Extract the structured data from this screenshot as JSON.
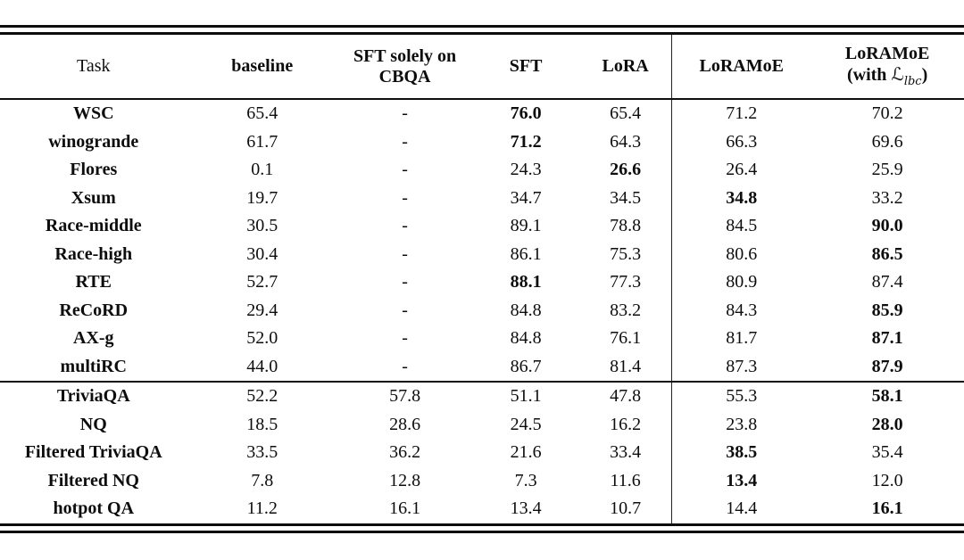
{
  "table": {
    "columns": [
      {
        "label": "Task",
        "bold": false
      },
      {
        "label": "baseline",
        "bold": true
      },
      {
        "line1": "SFT solely on",
        "line2": "CBQA",
        "bold": true
      },
      {
        "label": "SFT",
        "bold": true
      },
      {
        "label": "LoRA",
        "bold": true
      },
      {
        "label": "LoRAMoE",
        "bold": true
      },
      {
        "line1": "LoRAMoE",
        "line2_pre": "(with ",
        "math_symbol": "ℒ",
        "math_sub": "lbc",
        "line2_post": ")",
        "bold": true
      }
    ],
    "sections": [
      {
        "name": "downstream-tasks",
        "rows": [
          {
            "task": "WSC",
            "cells": [
              {
                "v": "65.4",
                "b": false
              },
              {
                "v": "-",
                "b": false
              },
              {
                "v": "76.0",
                "b": true
              },
              {
                "v": "65.4",
                "b": false
              },
              {
                "v": "71.2",
                "b": false
              },
              {
                "v": "70.2",
                "b": false
              }
            ]
          },
          {
            "task": "winogrande",
            "cells": [
              {
                "v": "61.7",
                "b": false
              },
              {
                "v": "-",
                "b": false
              },
              {
                "v": "71.2",
                "b": true
              },
              {
                "v": "64.3",
                "b": false
              },
              {
                "v": "66.3",
                "b": false
              },
              {
                "v": "69.6",
                "b": false
              }
            ]
          },
          {
            "task": "Flores",
            "cells": [
              {
                "v": "0.1",
                "b": false
              },
              {
                "v": "-",
                "b": false
              },
              {
                "v": "24.3",
                "b": false
              },
              {
                "v": "26.6",
                "b": true
              },
              {
                "v": "26.4",
                "b": false
              },
              {
                "v": "25.9",
                "b": false
              }
            ]
          },
          {
            "task": "Xsum",
            "cells": [
              {
                "v": "19.7",
                "b": false
              },
              {
                "v": "-",
                "b": false
              },
              {
                "v": "34.7",
                "b": false
              },
              {
                "v": "34.5",
                "b": false
              },
              {
                "v": "34.8",
                "b": true
              },
              {
                "v": "33.2",
                "b": false
              }
            ]
          },
          {
            "task": "Race-middle",
            "cells": [
              {
                "v": "30.5",
                "b": false
              },
              {
                "v": "-",
                "b": false
              },
              {
                "v": "89.1",
                "b": false
              },
              {
                "v": "78.8",
                "b": false
              },
              {
                "v": "84.5",
                "b": false
              },
              {
                "v": "90.0",
                "b": true
              }
            ]
          },
          {
            "task": "Race-high",
            "cells": [
              {
                "v": "30.4",
                "b": false
              },
              {
                "v": "-",
                "b": false
              },
              {
                "v": "86.1",
                "b": false
              },
              {
                "v": "75.3",
                "b": false
              },
              {
                "v": "80.6",
                "b": false
              },
              {
                "v": "86.5",
                "b": true
              }
            ]
          },
          {
            "task": "RTE",
            "cells": [
              {
                "v": "52.7",
                "b": false
              },
              {
                "v": "-",
                "b": false
              },
              {
                "v": "88.1",
                "b": true
              },
              {
                "v": "77.3",
                "b": false
              },
              {
                "v": "80.9",
                "b": false
              },
              {
                "v": "87.4",
                "b": false
              }
            ]
          },
          {
            "task": "ReCoRD",
            "cells": [
              {
                "v": "29.4",
                "b": false
              },
              {
                "v": "-",
                "b": false
              },
              {
                "v": "84.8",
                "b": false
              },
              {
                "v": "83.2",
                "b": false
              },
              {
                "v": "84.3",
                "b": false
              },
              {
                "v": "85.9",
                "b": true
              }
            ]
          },
          {
            "task": "AX-g",
            "cells": [
              {
                "v": "52.0",
                "b": false
              },
              {
                "v": "-",
                "b": false
              },
              {
                "v": "84.8",
                "b": false
              },
              {
                "v": "76.1",
                "b": false
              },
              {
                "v": "81.7",
                "b": false
              },
              {
                "v": "87.1",
                "b": true
              }
            ]
          },
          {
            "task": "multiRC",
            "cells": [
              {
                "v": "44.0",
                "b": false
              },
              {
                "v": "-",
                "b": false
              },
              {
                "v": "86.7",
                "b": false
              },
              {
                "v": "81.4",
                "b": false
              },
              {
                "v": "87.3",
                "b": false
              },
              {
                "v": "87.9",
                "b": true
              }
            ]
          }
        ]
      },
      {
        "name": "cbqa-tasks",
        "rows": [
          {
            "task": "TriviaQA",
            "cells": [
              {
                "v": "52.2",
                "b": false
              },
              {
                "v": "57.8",
                "b": false
              },
              {
                "v": "51.1",
                "b": false
              },
              {
                "v": "47.8",
                "b": false
              },
              {
                "v": "55.3",
                "b": false
              },
              {
                "v": "58.1",
                "b": true
              }
            ]
          },
          {
            "task": "NQ",
            "cells": [
              {
                "v": "18.5",
                "b": false
              },
              {
                "v": "28.6",
                "b": false
              },
              {
                "v": "24.5",
                "b": false
              },
              {
                "v": "16.2",
                "b": false
              },
              {
                "v": "23.8",
                "b": false
              },
              {
                "v": "28.0",
                "b": true
              }
            ]
          },
          {
            "task": "Filtered TriviaQA",
            "cells": [
              {
                "v": "33.5",
                "b": false
              },
              {
                "v": "36.2",
                "b": false
              },
              {
                "v": "21.6",
                "b": false
              },
              {
                "v": "33.4",
                "b": false
              },
              {
                "v": "38.5",
                "b": true
              },
              {
                "v": "35.4",
                "b": false
              }
            ]
          },
          {
            "task": "Filtered NQ",
            "cells": [
              {
                "v": "7.8",
                "b": false
              },
              {
                "v": "12.8",
                "b": false
              },
              {
                "v": "7.3",
                "b": false
              },
              {
                "v": "11.6",
                "b": false
              },
              {
                "v": "13.4",
                "b": true
              },
              {
                "v": "12.0",
                "b": false
              }
            ]
          },
          {
            "task": "hotpot QA",
            "cells": [
              {
                "v": "11.2",
                "b": false
              },
              {
                "v": "16.1",
                "b": false
              },
              {
                "v": "13.4",
                "b": false
              },
              {
                "v": "10.7",
                "b": false
              },
              {
                "v": "14.4",
                "b": false
              },
              {
                "v": "16.1",
                "b": true
              }
            ]
          }
        ]
      }
    ],
    "rule_color": "#0d0d0d"
  }
}
